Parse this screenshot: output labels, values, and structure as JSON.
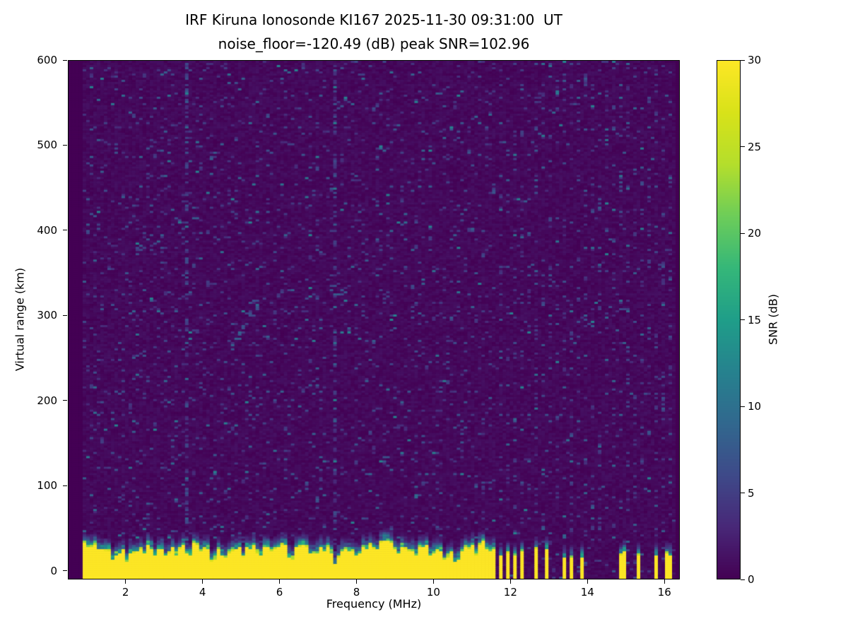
{
  "page": {
    "background": "#ffffff"
  },
  "chart_data": {
    "type": "heatmap",
    "title": "IRF Kiruna Ionosonde KI167 2025-11-30 09:31:00  UT",
    "subtitle": "noise_floor=-120.49 (dB) peak SNR=102.96",
    "station": "IRF Kiruna Ionosonde KI167",
    "timestamp_ut": "2025-11-30 09:31:00",
    "noise_floor_db": -120.49,
    "peak_snr_db": 102.96,
    "xlabel": "Frequency (MHz)",
    "ylabel": "Virtual range (km)",
    "colorbar_label": "SNR (dB)",
    "xlim": [
      0.5,
      16.4
    ],
    "ylim": [
      -10,
      600
    ],
    "xticks": [
      2,
      4,
      6,
      8,
      10,
      12,
      14,
      16
    ],
    "yticks": [
      0,
      100,
      200,
      300,
      400,
      500,
      600
    ],
    "colorbar": {
      "range": [
        0,
        30
      ],
      "ticks": [
        0,
        5,
        10,
        15,
        20,
        25,
        30
      ]
    },
    "colormap": {
      "name": "viridis",
      "stops": [
        {
          "t": 0.0,
          "color": "#440154"
        },
        {
          "t": 0.1,
          "color": "#482878"
        },
        {
          "t": 0.2,
          "color": "#3e4a89"
        },
        {
          "t": 0.3,
          "color": "#31688e"
        },
        {
          "t": 0.4,
          "color": "#26828e"
        },
        {
          "t": 0.5,
          "color": "#1f9e89"
        },
        {
          "t": 0.6,
          "color": "#35b779"
        },
        {
          "t": 0.7,
          "color": "#6dcd59"
        },
        {
          "t": 0.8,
          "color": "#b4de2c"
        },
        {
          "t": 0.9,
          "color": "#d8e219"
        },
        {
          "t": 1.0,
          "color": "#fde725"
        }
      ]
    },
    "features": {
      "data_freq_range_mhz": [
        0.9,
        16.32
      ],
      "background_snr_db": 0,
      "noise_speckle": {
        "probability": 0.065,
        "snr_base_db": 3,
        "snr_max_db": 12
      },
      "interference_columns_mhz": [
        3.6,
        7.45
      ],
      "striping": {
        "freq_start_mhz": 11.62,
        "column_probability_on": 0.13,
        "column_probability_off": 0.012
      },
      "ground_clutter": {
        "freq_start_mhz": 0.9,
        "freq_end_mhz": 11.62,
        "mean_top_km": 26,
        "fringe_scale_km": 5.5,
        "notches": [
          {
            "f": 1.35,
            "depth": 8
          },
          {
            "f": 1.65,
            "depth": 13
          },
          {
            "f": 2.05,
            "depth": 8
          },
          {
            "f": 2.45,
            "depth": 7
          },
          {
            "f": 2.75,
            "depth": 9
          },
          {
            "f": 3.05,
            "depth": 14
          },
          {
            "f": 3.3,
            "depth": 8
          },
          {
            "f": 3.62,
            "depth": 17,
            "w": 0.06
          },
          {
            "f": 3.95,
            "depth": 8
          },
          {
            "f": 4.25,
            "depth": 12
          },
          {
            "f": 4.6,
            "depth": 7
          },
          {
            "f": 5.05,
            "depth": 9
          },
          {
            "f": 5.5,
            "depth": 7
          },
          {
            "f": 5.85,
            "depth": 8
          },
          {
            "f": 6.3,
            "depth": 20,
            "w": 0.06
          },
          {
            "f": 6.85,
            "depth": 9
          },
          {
            "f": 7.45,
            "depth": 20,
            "w": 0.06
          },
          {
            "f": 8.05,
            "depth": 9
          },
          {
            "f": 8.55,
            "depth": 11
          },
          {
            "f": 9.05,
            "depth": 12
          },
          {
            "f": 9.55,
            "depth": 8
          },
          {
            "f": 9.95,
            "depth": 10
          },
          {
            "f": 10.3,
            "depth": 8
          },
          {
            "f": 10.6,
            "depth": 12
          },
          {
            "f": 11.1,
            "depth": 10
          },
          {
            "f": 11.45,
            "depth": 9
          }
        ]
      },
      "stepped_band": {
        "freq_start_mhz": 11.62,
        "freq_end_mhz": 13.15,
        "dense_until_mhz": 12.45,
        "top_km_min": 16,
        "top_km_max": 26
      },
      "sparse_bars_mhz": [
        13.45,
        13.6,
        13.9,
        14.85,
        15.0,
        15.35,
        15.8,
        16.05,
        16.2
      ],
      "echo_trace": {
        "freq_start_mhz": 4.75,
        "freq_end_mhz": 5.5,
        "range_start_km": 262,
        "range_end_km": 318
      }
    }
  }
}
